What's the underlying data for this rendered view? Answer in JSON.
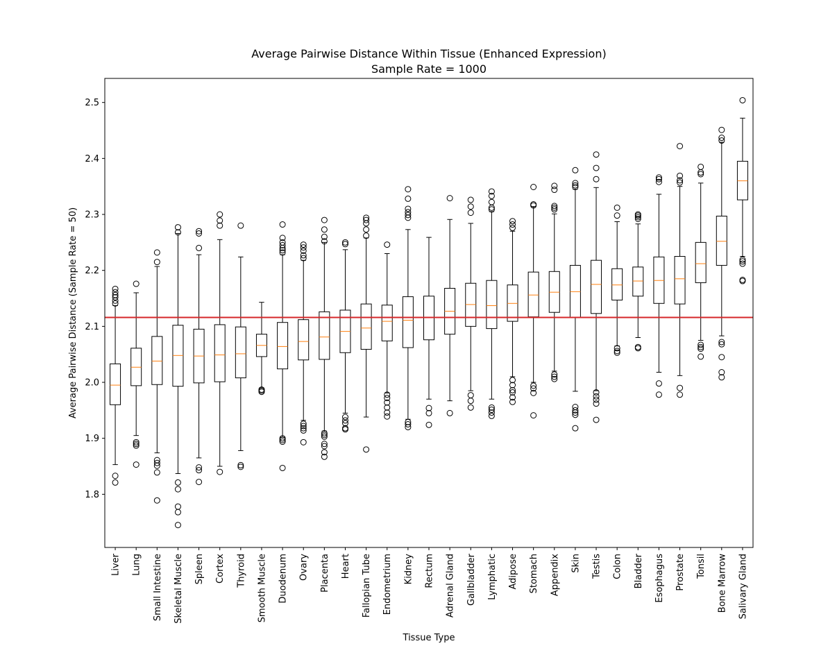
{
  "chart_data": {
    "type": "box",
    "title": "Average Pairwise Distance Within Tissue (Enhanced Expression)",
    "subtitle": "Sample Rate = 1000",
    "xlabel": "Tissue Type",
    "ylabel": "Average Pairwise Distance (Sample Rate = 50)",
    "ylim": [
      1.705,
      2.543
    ],
    "yticks": [
      "1.8",
      "1.9",
      "2.0",
      "2.1",
      "2.2",
      "2.3",
      "2.4",
      "2.5"
    ],
    "grid": false,
    "reference_line": {
      "y": 2.116,
      "color": "#d62728"
    },
    "colors": {
      "box": "#000000",
      "median": "#ff7f0e",
      "reference": "#d62728"
    },
    "boxes": [
      {
        "label": "Liver",
        "whislo": 1.853,
        "q1": 1.96,
        "med": 1.995,
        "q3": 2.033,
        "whishi": 2.137,
        "fliers": [
          1.821,
          1.833,
          2.141,
          2.146,
          2.152,
          2.156,
          2.161,
          2.167
        ]
      },
      {
        "label": "Lung",
        "whislo": 1.905,
        "q1": 1.994,
        "med": 2.027,
        "q3": 2.061,
        "whishi": 2.16,
        "fliers": [
          1.853,
          1.887,
          1.89,
          1.893,
          2.176
        ]
      },
      {
        "label": "Small Intestine",
        "whislo": 1.874,
        "q1": 1.996,
        "med": 2.038,
        "q3": 2.082,
        "whishi": 2.207,
        "fliers": [
          1.789,
          1.839,
          1.851,
          1.856,
          1.861,
          2.215,
          2.232
        ]
      },
      {
        "label": "Skeletal Muscle",
        "whislo": 1.837,
        "q1": 1.993,
        "med": 2.048,
        "q3": 2.102,
        "whishi": 2.266,
        "fliers": [
          1.745,
          1.768,
          1.778,
          1.809,
          1.821,
          2.268,
          2.277
        ]
      },
      {
        "label": "Spleen",
        "whislo": 1.865,
        "q1": 1.999,
        "med": 2.047,
        "q3": 2.095,
        "whishi": 2.228,
        "fliers": [
          1.822,
          1.843,
          1.848,
          2.24,
          2.266,
          2.27
        ]
      },
      {
        "label": "Cortex",
        "whislo": 1.85,
        "q1": 2.001,
        "med": 2.049,
        "q3": 2.103,
        "whishi": 2.255,
        "fliers": [
          1.84,
          2.28,
          2.289,
          2.3
        ]
      },
      {
        "label": "Thyroid",
        "whislo": 1.878,
        "q1": 2.008,
        "med": 2.051,
        "q3": 2.099,
        "whishi": 2.224,
        "fliers": [
          1.849,
          1.852,
          2.28
        ]
      },
      {
        "label": "Smooth Muscle",
        "whislo": 1.99,
        "q1": 2.046,
        "med": 2.066,
        "q3": 2.086,
        "whishi": 2.143,
        "fliers": [
          1.983,
          1.985,
          1.987
        ]
      },
      {
        "label": "Duodenum",
        "whislo": 1.902,
        "q1": 2.024,
        "med": 2.064,
        "q3": 2.107,
        "whishi": 2.228,
        "fliers": [
          1.847,
          1.894,
          1.897,
          1.9,
          2.232,
          2.236,
          2.24,
          2.245,
          2.25,
          2.258,
          2.282
        ]
      },
      {
        "label": "Ovary",
        "whislo": 1.932,
        "q1": 2.04,
        "med": 2.073,
        "q3": 2.112,
        "whishi": 2.218,
        "fliers": [
          1.893,
          1.914,
          1.918,
          1.922,
          1.926,
          2.222,
          2.227,
          2.235,
          2.241,
          2.246
        ]
      },
      {
        "label": "Placenta",
        "whislo": 1.913,
        "q1": 2.041,
        "med": 2.081,
        "q3": 2.126,
        "whishi": 2.25,
        "fliers": [
          1.867,
          1.875,
          1.886,
          1.89,
          1.903,
          1.906,
          1.909,
          2.252,
          2.26,
          2.273,
          2.29
        ]
      },
      {
        "label": "Heart",
        "whislo": 1.945,
        "q1": 2.053,
        "med": 2.091,
        "q3": 2.129,
        "whishi": 2.237,
        "fliers": [
          1.916,
          1.918,
          1.927,
          1.932,
          1.938,
          2.247,
          2.25
        ]
      },
      {
        "label": "Fallopian Tube",
        "whislo": 1.938,
        "q1": 2.059,
        "med": 2.097,
        "q3": 2.14,
        "whishi": 2.258,
        "fliers": [
          1.88,
          2.262,
          2.273,
          2.284,
          2.29,
          2.294
        ]
      },
      {
        "label": "Endometrium",
        "whislo": 1.981,
        "q1": 2.074,
        "med": 2.109,
        "q3": 2.138,
        "whishi": 2.23,
        "fliers": [
          1.939,
          1.946,
          1.955,
          1.964,
          1.972,
          1.978,
          2.246
        ]
      },
      {
        "label": "Kidney",
        "whislo": 1.934,
        "q1": 2.062,
        "med": 2.111,
        "q3": 2.153,
        "whishi": 2.273,
        "fliers": [
          1.92,
          1.925,
          1.929,
          2.294,
          2.299,
          2.304,
          2.31,
          2.328,
          2.345
        ]
      },
      {
        "label": "Rectum",
        "whislo": 1.97,
        "q1": 2.076,
        "med": 2.116,
        "q3": 2.154,
        "whishi": 2.259,
        "fliers": [
          1.924,
          1.945,
          1.954
        ]
      },
      {
        "label": "Adrenal Gland",
        "whislo": 1.967,
        "q1": 2.086,
        "med": 2.127,
        "q3": 2.168,
        "whishi": 2.291,
        "fliers": [
          1.945,
          2.329
        ]
      },
      {
        "label": "Gallbladder",
        "whislo": 1.985,
        "q1": 2.1,
        "med": 2.139,
        "q3": 2.177,
        "whishi": 2.284,
        "fliers": [
          1.955,
          1.967,
          1.977,
          2.303,
          2.314,
          2.326
        ]
      },
      {
        "label": "Lymphatic",
        "whislo": 1.97,
        "q1": 2.096,
        "med": 2.137,
        "q3": 2.182,
        "whishi": 2.305,
        "fliers": [
          1.94,
          1.946,
          1.951,
          1.955,
          2.309,
          2.312,
          2.322,
          2.333,
          2.341
        ]
      },
      {
        "label": "Adipose",
        "whislo": 2.01,
        "q1": 2.109,
        "med": 2.141,
        "q3": 2.174,
        "whishi": 2.27,
        "fliers": [
          1.965,
          1.973,
          1.982,
          1.986,
          1.995,
          2.004,
          2.276,
          2.282,
          2.288
        ]
      },
      {
        "label": "Stomach",
        "whislo": 2.0,
        "q1": 2.117,
        "med": 2.156,
        "q3": 2.197,
        "whishi": 2.314,
        "fliers": [
          1.941,
          1.981,
          1.989,
          1.994,
          2.316,
          2.318,
          2.349
        ]
      },
      {
        "label": "Appendix",
        "whislo": 2.02,
        "q1": 2.125,
        "med": 2.161,
        "q3": 2.198,
        "whishi": 2.301,
        "fliers": [
          2.006,
          2.01,
          2.014,
          2.309,
          2.312,
          2.315,
          2.344,
          2.351
        ]
      },
      {
        "label": "Skin",
        "whislo": 1.984,
        "q1": 2.116,
        "med": 2.162,
        "q3": 2.209,
        "whishi": 2.345,
        "fliers": [
          1.918,
          1.942,
          1.946,
          1.95,
          1.956,
          2.349,
          2.352,
          2.356,
          2.379
        ]
      },
      {
        "label": "Testis",
        "whislo": 1.985,
        "q1": 2.123,
        "med": 2.175,
        "q3": 2.218,
        "whishi": 2.348,
        "fliers": [
          1.933,
          1.962,
          1.969,
          1.975,
          1.982,
          2.363,
          2.383,
          2.407
        ]
      },
      {
        "label": "Colon",
        "whislo": 2.065,
        "q1": 2.147,
        "med": 2.174,
        "q3": 2.203,
        "whishi": 2.287,
        "fliers": [
          2.053,
          2.056,
          2.061,
          2.298,
          2.312
        ]
      },
      {
        "label": "Bladder",
        "whislo": 2.08,
        "q1": 2.154,
        "med": 2.181,
        "q3": 2.206,
        "whishi": 2.283,
        "fliers": [
          2.061,
          2.063,
          2.292,
          2.295,
          2.298,
          2.3
        ]
      },
      {
        "label": "Esophagus",
        "whislo": 2.018,
        "q1": 2.141,
        "med": 2.182,
        "q3": 2.224,
        "whishi": 2.336,
        "fliers": [
          1.978,
          1.998,
          2.358,
          2.363,
          2.366
        ]
      },
      {
        "label": "Prostate",
        "whislo": 2.012,
        "q1": 2.14,
        "med": 2.185,
        "q3": 2.225,
        "whishi": 2.35,
        "fliers": [
          1.978,
          1.99,
          2.357,
          2.361,
          2.369,
          2.422
        ]
      },
      {
        "label": "Tonsil",
        "whislo": 2.075,
        "q1": 2.178,
        "med": 2.212,
        "q3": 2.25,
        "whishi": 2.356,
        "fliers": [
          2.046,
          2.06,
          2.063,
          2.067,
          2.372,
          2.375,
          2.385
        ]
      },
      {
        "label": "Bone Marrow",
        "whislo": 2.083,
        "q1": 2.209,
        "med": 2.252,
        "q3": 2.297,
        "whishi": 2.429,
        "fliers": [
          2.009,
          2.018,
          2.045,
          2.068,
          2.072,
          2.432,
          2.437,
          2.451
        ]
      },
      {
        "label": "Salivary Gland",
        "whislo": 2.225,
        "q1": 2.326,
        "med": 2.36,
        "q3": 2.395,
        "whishi": 2.472,
        "fliers": [
          2.181,
          2.183,
          2.212,
          2.216,
          2.219,
          2.504
        ]
      }
    ]
  }
}
